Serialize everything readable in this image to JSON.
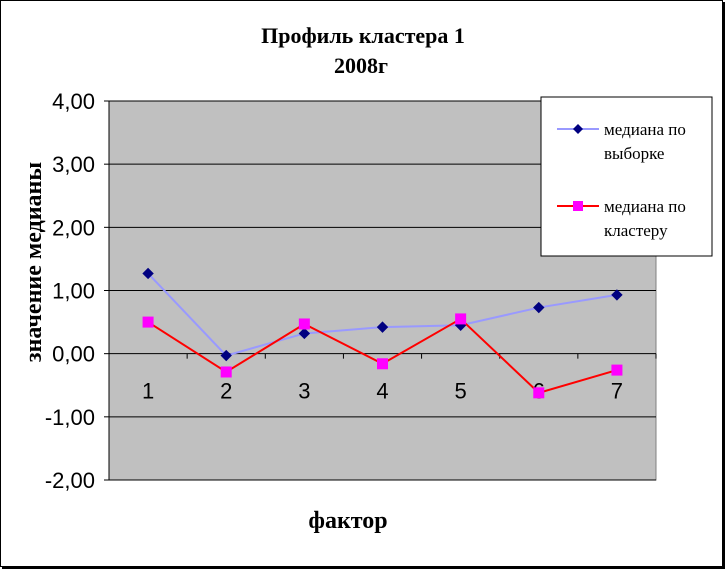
{
  "chart_data": {
    "type": "line",
    "title": "Профиль кластера 1",
    "subtitle": "2008г",
    "xlabel": "фактор",
    "ylabel": "значение медианы",
    "categories": [
      "1",
      "2",
      "3",
      "4",
      "5",
      "6",
      "7"
    ],
    "ylim": [
      -2,
      4
    ],
    "yticks": [
      "4,00",
      "3,00",
      "2,00",
      "1,00",
      "0,00",
      "-1,00",
      "-2,00"
    ],
    "ytick_values": [
      4,
      3,
      2,
      1,
      0,
      -1,
      -2
    ],
    "grid": "horizontal",
    "legend_position": "top-right",
    "plot_background": "#c0c0c0",
    "series": [
      {
        "name": "медиана по выборке",
        "legend_lines": [
          "медиана по",
          "выборке"
        ],
        "values": [
          1.27,
          -0.03,
          0.32,
          0.42,
          0.45,
          0.73,
          0.93
        ],
        "line_color": "#9999ff",
        "marker_color": "#000080",
        "marker": "diamond"
      },
      {
        "name": "медиана по кластеру",
        "legend_lines": [
          "медиана по",
          "кластеру"
        ],
        "values": [
          0.5,
          -0.29,
          0.47,
          -0.16,
          0.55,
          -0.62,
          -0.26
        ],
        "line_color": "#ff0000",
        "marker_color": "#ff00ff",
        "marker": "square"
      }
    ]
  }
}
